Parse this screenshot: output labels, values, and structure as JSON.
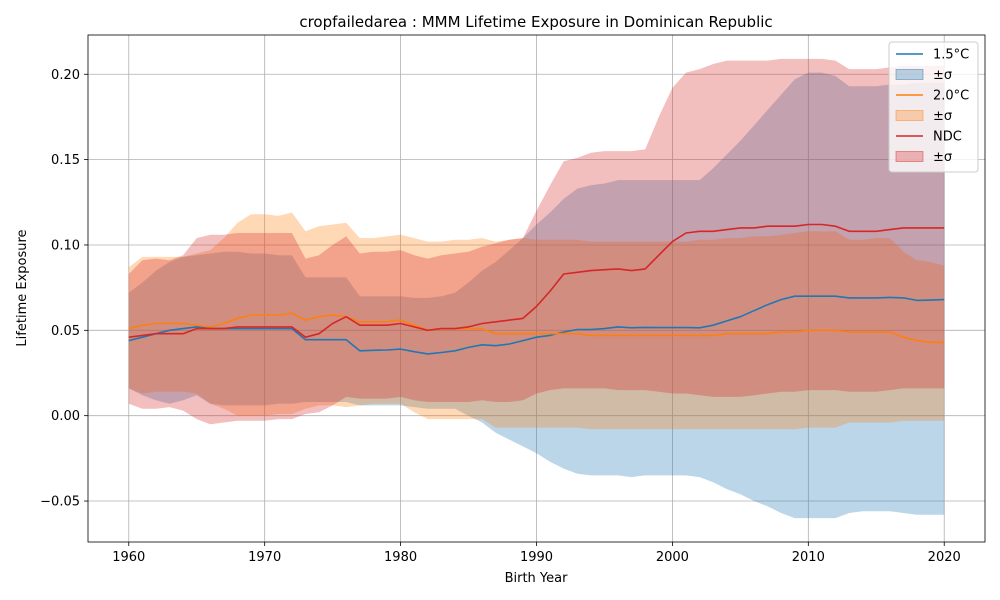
{
  "chart_data": {
    "type": "line",
    "title": "cropfailedarea : MMM Lifetime Exposure in Dominican Republic",
    "xlabel": "Birth Year",
    "ylabel": "Lifetime Exposure",
    "xlim": [
      1957,
      2023
    ],
    "ylim": [
      -0.074,
      0.223
    ],
    "xticks": [
      1960,
      1970,
      1980,
      1990,
      2000,
      2010,
      2020
    ],
    "xtick_labels": [
      "1960",
      "1970",
      "1980",
      "1990",
      "2000",
      "2010",
      "2020"
    ],
    "yticks": [
      -0.05,
      0.0,
      0.05,
      0.1,
      0.15,
      0.2
    ],
    "ytick_labels": [
      "−0.05",
      "0.00",
      "0.05",
      "0.10",
      "0.15",
      "0.20"
    ],
    "grid": true,
    "legend_position": "top-right",
    "x": [
      1960,
      1961,
      1962,
      1963,
      1964,
      1965,
      1966,
      1967,
      1968,
      1969,
      1970,
      1971,
      1972,
      1973,
      1974,
      1975,
      1976,
      1977,
      1978,
      1979,
      1980,
      1981,
      1982,
      1983,
      1984,
      1985,
      1986,
      1987,
      1988,
      1989,
      1990,
      1991,
      1992,
      1993,
      1994,
      1995,
      1996,
      1997,
      1998,
      1999,
      2000,
      2001,
      2002,
      2003,
      2004,
      2005,
      2006,
      2007,
      2008,
      2009,
      2010,
      2011,
      2012,
      2013,
      2014,
      2015,
      2016,
      2017,
      2018,
      2019,
      2020
    ],
    "series": [
      {
        "name": "1.5°C",
        "band_label": "±σ",
        "color": "#1f77b4",
        "mean": [
          0.044,
          0.046,
          0.048,
          0.05,
          0.051,
          0.052,
          0.051,
          0.051,
          0.051,
          0.051,
          0.051,
          0.051,
          0.051,
          0.0445,
          0.0445,
          0.0445,
          0.0445,
          0.038,
          0.0383,
          0.0385,
          0.039,
          0.0375,
          0.0362,
          0.037,
          0.038,
          0.04,
          0.0415,
          0.041,
          0.042,
          0.044,
          0.046,
          0.047,
          0.049,
          0.0505,
          0.0505,
          0.051,
          0.052,
          0.0515,
          0.0517,
          0.0516,
          0.0516,
          0.0516,
          0.0515,
          0.053,
          0.0555,
          0.058,
          0.0615,
          0.065,
          0.068,
          0.07,
          0.07,
          0.07,
          0.07,
          0.069,
          0.069,
          0.069,
          0.0693,
          0.069,
          0.0675,
          0.0677,
          0.068
        ],
        "upper": [
          0.072,
          0.078,
          0.085,
          0.09,
          0.093,
          0.094,
          0.095,
          0.096,
          0.096,
          0.095,
          0.095,
          0.094,
          0.094,
          0.081,
          0.081,
          0.081,
          0.081,
          0.07,
          0.07,
          0.07,
          0.07,
          0.069,
          0.069,
          0.07,
          0.072,
          0.078,
          0.085,
          0.09,
          0.097,
          0.104,
          0.112,
          0.119,
          0.127,
          0.133,
          0.135,
          0.136,
          0.138,
          0.138,
          0.138,
          0.138,
          0.138,
          0.138,
          0.138,
          0.145,
          0.153,
          0.161,
          0.17,
          0.179,
          0.188,
          0.197,
          0.201,
          0.201,
          0.199,
          0.193,
          0.193,
          0.193,
          0.194,
          0.194,
          0.195,
          0.195,
          0.195
        ],
        "lower": [
          0.016,
          0.012,
          0.009,
          0.007,
          0.009,
          0.012,
          0.007,
          0.006,
          0.006,
          0.006,
          0.006,
          0.007,
          0.007,
          0.008,
          0.008,
          0.008,
          0.008,
          0.006,
          0.006,
          0.006,
          0.006,
          0.005,
          0.004,
          0.004,
          0.004,
          0.0,
          -0.004,
          -0.01,
          -0.014,
          -0.018,
          -0.022,
          -0.027,
          -0.031,
          -0.034,
          -0.035,
          -0.035,
          -0.035,
          -0.036,
          -0.035,
          -0.035,
          -0.035,
          -0.035,
          -0.036,
          -0.039,
          -0.043,
          -0.046,
          -0.05,
          -0.053,
          -0.057,
          -0.06,
          -0.06,
          -0.06,
          -0.06,
          -0.057,
          -0.056,
          -0.056,
          -0.056,
          -0.057,
          -0.058,
          -0.058,
          -0.058
        ]
      },
      {
        "name": "2.0°C",
        "band_label": "±σ",
        "color": "#ff7f0e",
        "mean": [
          0.051,
          0.053,
          0.054,
          0.054,
          0.054,
          0.053,
          0.052,
          0.054,
          0.057,
          0.059,
          0.059,
          0.059,
          0.06,
          0.056,
          0.058,
          0.059,
          0.058,
          0.055,
          0.055,
          0.055,
          0.056,
          0.053,
          0.05,
          0.051,
          0.051,
          0.051,
          0.051,
          0.048,
          0.048,
          0.048,
          0.048,
          0.048,
          0.048,
          0.048,
          0.047,
          0.047,
          0.047,
          0.047,
          0.047,
          0.047,
          0.047,
          0.047,
          0.047,
          0.047,
          0.048,
          0.048,
          0.048,
          0.048,
          0.049,
          0.049,
          0.05,
          0.05,
          0.05,
          0.049,
          0.049,
          0.049,
          0.049,
          0.046,
          0.044,
          0.043,
          0.043
        ],
        "upper": [
          0.087,
          0.093,
          0.093,
          0.093,
          0.093,
          0.095,
          0.097,
          0.104,
          0.113,
          0.118,
          0.118,
          0.117,
          0.119,
          0.108,
          0.111,
          0.112,
          0.113,
          0.104,
          0.104,
          0.105,
          0.106,
          0.104,
          0.102,
          0.102,
          0.103,
          0.103,
          0.104,
          0.102,
          0.103,
          0.104,
          0.103,
          0.103,
          0.103,
          0.103,
          0.102,
          0.102,
          0.102,
          0.102,
          0.102,
          0.102,
          0.102,
          0.102,
          0.103,
          0.103,
          0.104,
          0.104,
          0.105,
          0.105,
          0.106,
          0.107,
          0.108,
          0.108,
          0.108,
          0.103,
          0.103,
          0.104,
          0.104,
          0.096,
          0.091,
          0.09,
          0.088
        ],
        "lower": [
          0.016,
          0.013,
          0.014,
          0.014,
          0.014,
          0.013,
          0.007,
          0.004,
          0.0,
          0.0,
          0.0,
          0.001,
          0.001,
          0.004,
          0.006,
          0.006,
          0.005,
          0.006,
          0.007,
          0.007,
          0.007,
          0.002,
          -0.002,
          -0.002,
          -0.002,
          -0.002,
          -0.002,
          -0.007,
          -0.007,
          -0.007,
          -0.007,
          -0.007,
          -0.007,
          -0.007,
          -0.008,
          -0.008,
          -0.008,
          -0.008,
          -0.008,
          -0.008,
          -0.008,
          -0.008,
          -0.008,
          -0.008,
          -0.008,
          -0.008,
          -0.008,
          -0.008,
          -0.008,
          -0.008,
          -0.007,
          -0.007,
          -0.007,
          -0.004,
          -0.004,
          -0.004,
          -0.004,
          -0.003,
          -0.003,
          -0.003,
          -0.003
        ]
      },
      {
        "name": "NDC",
        "band_label": "±σ",
        "color": "#d62728",
        "mean": [
          0.046,
          0.047,
          0.048,
          0.048,
          0.048,
          0.051,
          0.051,
          0.051,
          0.052,
          0.052,
          0.052,
          0.052,
          0.052,
          0.046,
          0.048,
          0.054,
          0.058,
          0.053,
          0.053,
          0.053,
          0.054,
          0.052,
          0.05,
          0.051,
          0.051,
          0.052,
          0.054,
          0.055,
          0.056,
          0.057,
          0.064,
          0.073,
          0.083,
          0.084,
          0.085,
          0.0855,
          0.086,
          0.085,
          0.086,
          0.094,
          0.102,
          0.107,
          0.108,
          0.108,
          0.109,
          0.11,
          0.11,
          0.111,
          0.111,
          0.111,
          0.112,
          0.112,
          0.111,
          0.108,
          0.108,
          0.108,
          0.109,
          0.11,
          0.11,
          0.11,
          0.11
        ],
        "upper": [
          0.083,
          0.091,
          0.092,
          0.091,
          0.094,
          0.104,
          0.106,
          0.106,
          0.107,
          0.107,
          0.107,
          0.107,
          0.107,
          0.092,
          0.094,
          0.1,
          0.105,
          0.095,
          0.096,
          0.096,
          0.097,
          0.094,
          0.092,
          0.094,
          0.095,
          0.096,
          0.099,
          0.101,
          0.103,
          0.104,
          0.12,
          0.135,
          0.149,
          0.151,
          0.154,
          0.155,
          0.155,
          0.155,
          0.156,
          0.175,
          0.192,
          0.201,
          0.203,
          0.206,
          0.208,
          0.208,
          0.208,
          0.208,
          0.209,
          0.209,
          0.209,
          0.209,
          0.208,
          0.203,
          0.203,
          0.203,
          0.204,
          0.205,
          0.205,
          0.205,
          0.205
        ],
        "lower": [
          0.007,
          0.004,
          0.004,
          0.005,
          0.003,
          -0.002,
          -0.005,
          -0.004,
          -0.003,
          -0.003,
          -0.003,
          -0.002,
          -0.002,
          0.001,
          0.002,
          0.006,
          0.011,
          0.01,
          0.01,
          0.01,
          0.011,
          0.009,
          0.008,
          0.008,
          0.008,
          0.008,
          0.009,
          0.008,
          0.008,
          0.009,
          0.013,
          0.015,
          0.016,
          0.016,
          0.016,
          0.016,
          0.015,
          0.015,
          0.015,
          0.014,
          0.013,
          0.013,
          0.012,
          0.011,
          0.011,
          0.011,
          0.012,
          0.013,
          0.014,
          0.014,
          0.015,
          0.015,
          0.015,
          0.014,
          0.014,
          0.014,
          0.015,
          0.016,
          0.016,
          0.016,
          0.016
        ]
      }
    ]
  }
}
